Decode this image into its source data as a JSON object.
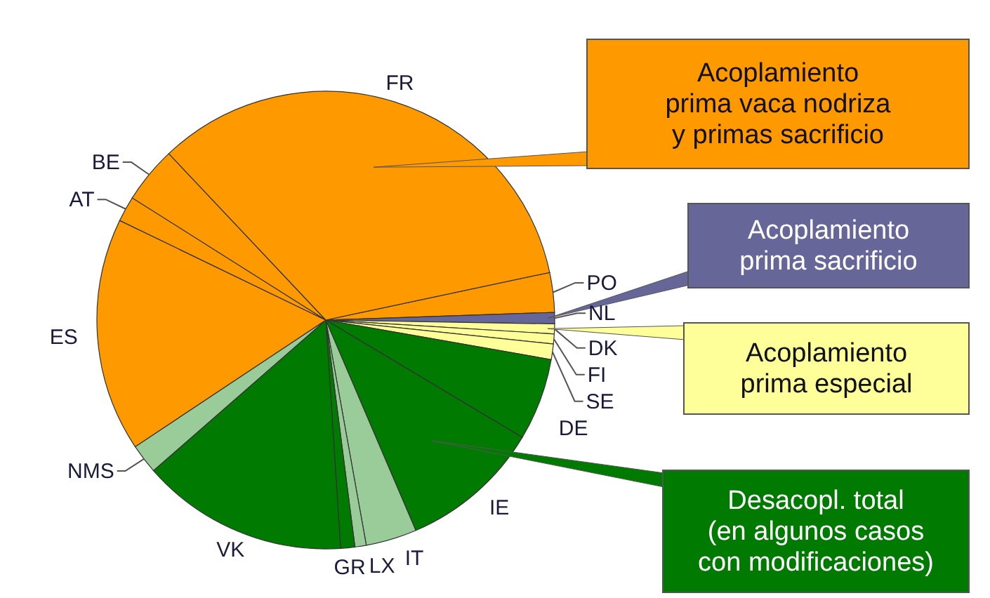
{
  "chart_data": {
    "type": "pie",
    "categories": [
      "PO",
      "NL",
      "DK",
      "FI",
      "SE",
      "DE",
      "IE",
      "IT",
      "LX",
      "GR",
      "VK",
      "NMS",
      "ES",
      "AT",
      "BE",
      "FR"
    ],
    "values": [
      2.8,
      0.8,
      0.7,
      0.7,
      1.1,
      5.8,
      10,
      3.6,
      0.8,
      1.0,
      14.6,
      2.1,
      16.5,
      1.8,
      4.0,
      33.7
    ],
    "colors": [
      "#ff9900",
      "#666699",
      "#ffff99",
      "#ffff99",
      "#ffff99",
      "#007a00",
      "#007a00",
      "#99cc99",
      "#99cc99",
      "#007a00",
      "#007a00",
      "#99cc99",
      "#ff9900",
      "#ff9900",
      "#ff9900",
      "#ff9900"
    ],
    "annotations": [
      {
        "text": "Acoplamiento\nprima vaca nodriza\ny primas sacrificio",
        "x": "FR"
      },
      {
        "text": "Acoplamiento\nprima sacrificio",
        "x": "NL"
      },
      {
        "text": "Acoplamiento\nprima especial",
        "x": "DK"
      },
      {
        "text": "Desacopl. total\n(en algunos casos\ncon modificaciones)",
        "x": "IE"
      }
    ]
  }
}
